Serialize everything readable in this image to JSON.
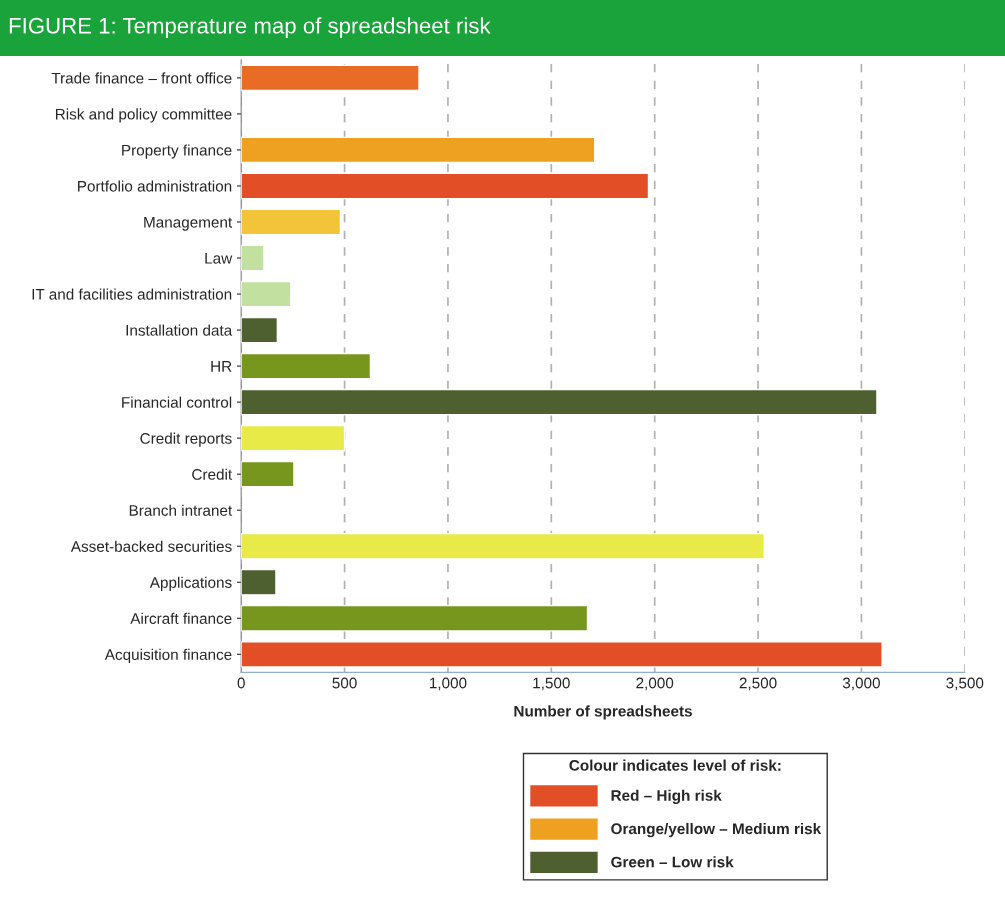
{
  "chart_data": {
    "type": "bar",
    "orientation": "horizontal",
    "title": "FIGURE 1: Temperature map of spreadsheet risk",
    "xlabel": "Number of spreadsheets",
    "legend_title": "Colour indicates level of risk:",
    "legend": "bottom",
    "grid": "x",
    "xlim": [
      0,
      3500
    ],
    "xticks": [
      0,
      500,
      {
        "value": 1000,
        "label": "1,000"
      },
      {
        "value": 1500,
        "label": "1,500"
      },
      {
        "value": 2000,
        "label": "2,000"
      },
      {
        "value": 2500,
        "label": "2,500"
      },
      {
        "value": 3000,
        "label": "3,000"
      },
      {
        "value": 3500,
        "label": "3,500"
      }
    ],
    "categories": [
      "Trade finance – front office",
      "Risk and policy committee",
      "Property finance",
      "Portfolio administration",
      "Management",
      "Law",
      "IT and facilities administration",
      "Installation data",
      "HR",
      "Financial control",
      "Credit reports",
      "Credit",
      "Branch intranet",
      "Asset-backed securities",
      "Applications",
      "Aircraft finance",
      "Acquisition finance"
    ],
    "series": [
      {
        "name": "Red – High risk",
        "color": "#e24e26",
        "colors": [
          "#e86c26",
          null,
          null,
          "#e24e26",
          null,
          null,
          null,
          null,
          null,
          null,
          null,
          null,
          null,
          null,
          null,
          null,
          "#e24e26"
        ],
        "values": [
          860,
          null,
          null,
          1970,
          null,
          null,
          null,
          null,
          null,
          null,
          null,
          null,
          null,
          null,
          null,
          null,
          3100
        ]
      },
      {
        "name": "Orange/yellow – Medium risk",
        "color": "#eea020",
        "colors": [
          null,
          null,
          "#eea020",
          null,
          "#f2c43a",
          null,
          null,
          null,
          null,
          null,
          "#e8ea48",
          null,
          null,
          "#e8ea48",
          null,
          null,
          null
        ],
        "values": [
          null,
          null,
          1710,
          null,
          480,
          null,
          null,
          null,
          null,
          null,
          500,
          null,
          null,
          2530,
          null,
          null,
          null
        ]
      },
      {
        "name": "Green – Low risk",
        "color": "#4e6030",
        "colors": [
          null,
          null,
          null,
          null,
          null,
          "#c2e0a0",
          "#c2e0a0",
          "#4e6030",
          "#76961e",
          "#4e6030",
          null,
          "#76961e",
          null,
          null,
          "#4e6030",
          "#76961e",
          null
        ],
        "values": [
          null,
          null,
          null,
          null,
          null,
          110,
          240,
          175,
          625,
          3075,
          null,
          255,
          null,
          null,
          168,
          1675,
          null
        ]
      }
    ]
  }
}
